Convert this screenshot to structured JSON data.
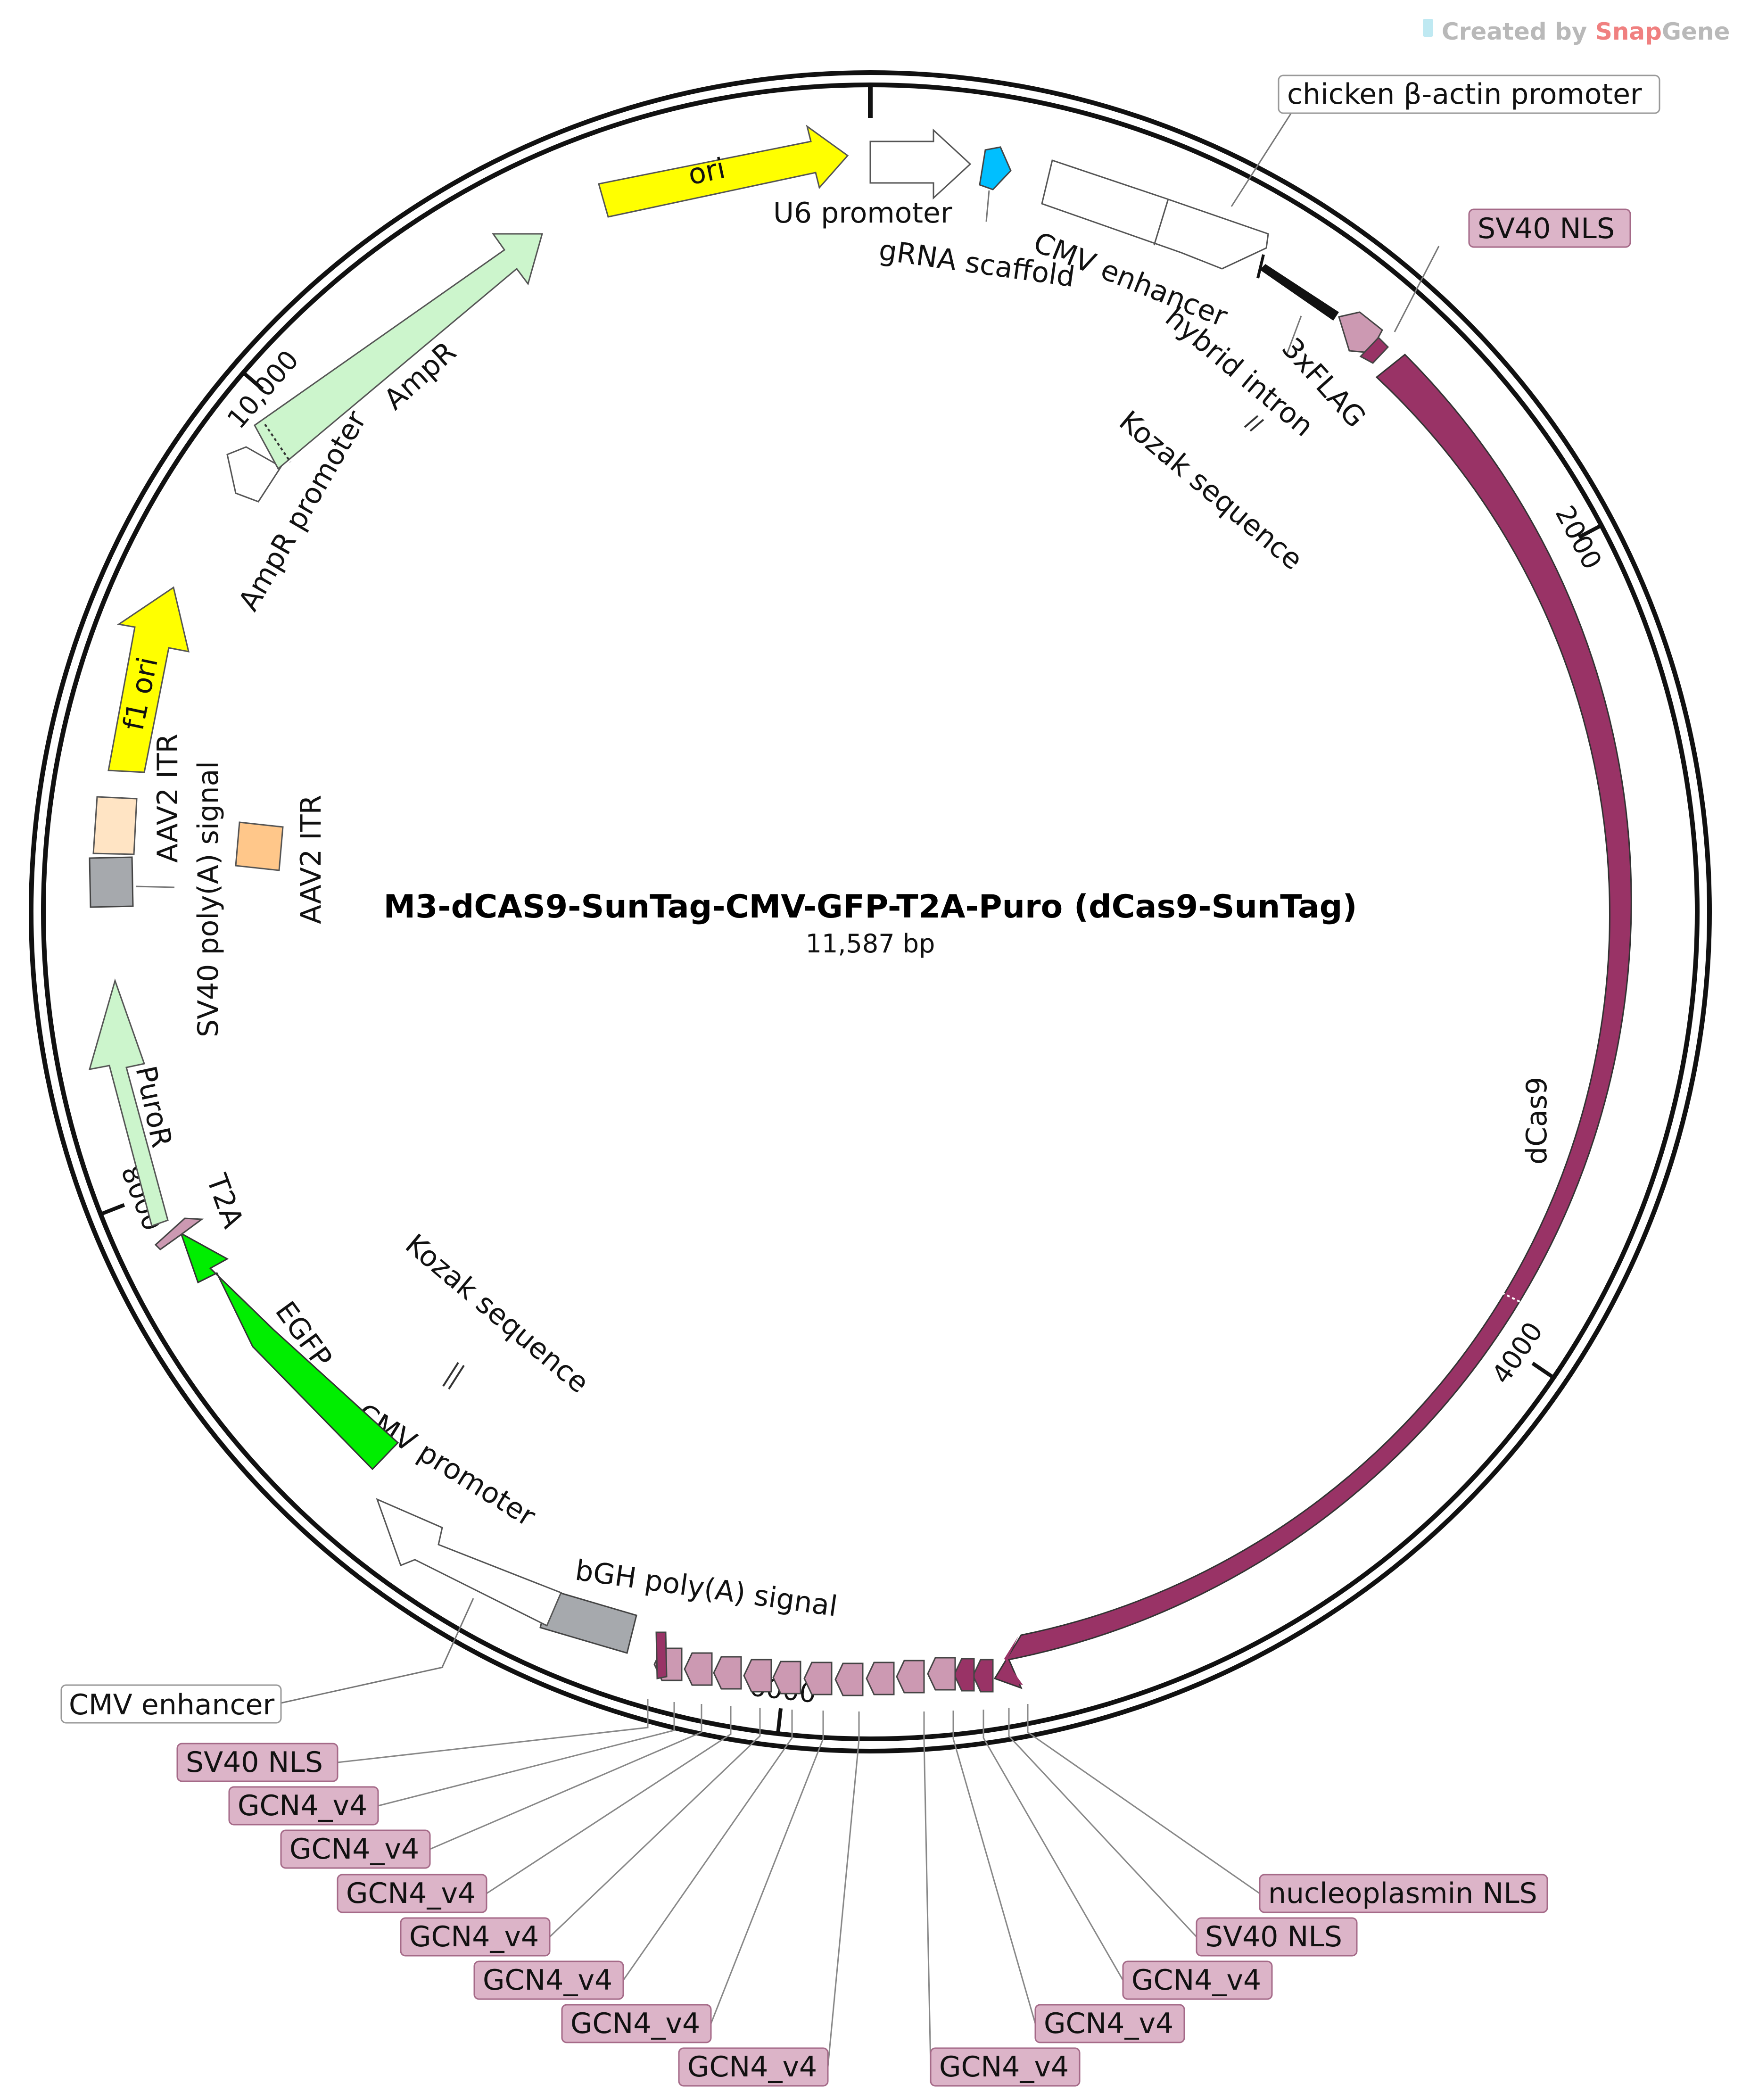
{
  "plasmid": {
    "name": "M3-dCAS9-SunTag-CMV-GFP-T2A-Puro (dCas9-SunTag)",
    "length_label": "11,587 bp",
    "total_bp": 11587
  },
  "branding": {
    "prefix": "Created by ",
    "brand_a": "Snap",
    "brand_b": "Gene"
  },
  "ticks": [
    {
      "bp": 2000,
      "label": "2000"
    },
    {
      "bp": 4000,
      "label": "4000"
    },
    {
      "bp": 6000,
      "label": "6000"
    },
    {
      "bp": 8000,
      "label": "8000"
    },
    {
      "bp": 10000,
      "label": "10,000"
    }
  ],
  "features": {
    "ori": "ori",
    "u6_promoter": "U6 promoter",
    "grna_scaffold": "gRNA scaffold",
    "cmv_enhancer_top": "CMV enhancer",
    "chicken_actin": "chicken β-actin promoter",
    "hybrid_intron": "hybrid intron",
    "kozak_top": "Kozak sequence",
    "flag": "3xFLAG",
    "sv40_nls_top": "SV40 NLS",
    "dcas9": "dCas9",
    "nucleoplasmin_nls": "nucleoplasmin NLS",
    "sv40_nls_bottom_right": "SV40 NLS",
    "gcn4": "GCN4_v4",
    "sv40_nls_bottom_left": "SV40 NLS",
    "bgh_polya": "bGH poly(A) signal",
    "cmv_promoter": "CMV promoter",
    "cmv_enhancer_bottom": "CMV enhancer",
    "kozak_bottom": "Kozak sequence",
    "egfp": "EGFP",
    "t2a": "T2A",
    "puror": "PuroR",
    "sv40_polya": "SV40 poly(A) signal",
    "aav2_itr_left": "AAV2 ITR",
    "aav2_itr_right": "AAV2 ITR",
    "f1_ori": "f1 ori",
    "ampr_promoter": "AmpR promoter",
    "ampr": "AmpR"
  },
  "colors": {
    "ori": "#ffff00",
    "dcas9": "#993366",
    "suntag": "#cc99b2",
    "sv40_nls": "#993366",
    "egfp": "#00ee00",
    "puror": "#ccf5cc",
    "ampr": "#ccf5cc",
    "f1_ori": "#ffff00",
    "grna": "#00bfff",
    "aav2_itr_left": "#ffe4c4",
    "aav2_itr_right": "#ffc78a",
    "polya_gray": "#a6a9ad",
    "label_pink": "#dcb4c8"
  }
}
